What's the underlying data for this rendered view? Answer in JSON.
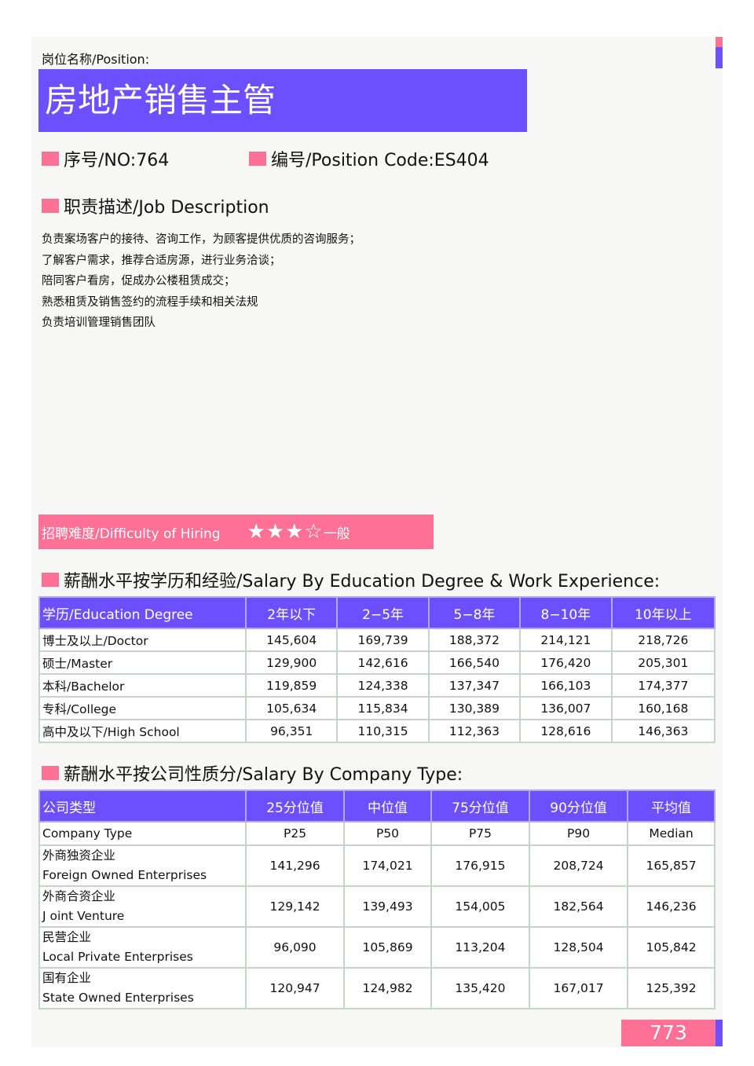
{
  "position_label": "岗位名称/Position:",
  "title": "房地产销售主管",
  "no": "序号/NO:764",
  "code": "编号/Position Code:ES404",
  "job_desc_header": "职责描述/Job Description",
  "job_desc": [
    "负责案场客户的接待、咨询工作，为顾客提供优质的咨询服务；",
    "了解客户需求，推荐合适房源，进行业务洽谈；",
    "陪同客户看房，促成办公楼租赁成交；",
    "熟悉租赁及销售签约的流程手续和相关法规",
    "负责培训管理销售团队"
  ],
  "difficulty": {
    "label": "招聘难度/Difficulty of Hiring",
    "stars": "★★★☆",
    "rating": 3,
    "max": 4,
    "level": "一般"
  },
  "edu_header": "薪酬水平按学历和经验/Salary By Education Degree & Work Experience:",
  "edu_table": {
    "columns": [
      "学历/Education Degree",
      "2年以下",
      "2−5年",
      "5−8年",
      "8−10年",
      "10年以上"
    ],
    "rows": [
      [
        "博士及以上/Doctor",
        "145,604",
        "169,739",
        "188,372",
        "214,121",
        "218,726"
      ],
      [
        "硕士/Master",
        "129,900",
        "142,616",
        "166,540",
        "176,420",
        "205,301"
      ],
      [
        "本科/Bachelor",
        "119,859",
        "124,338",
        "137,347",
        "166,103",
        "174,377"
      ],
      [
        "专科/College",
        "105,634",
        "115,834",
        "130,389",
        "136,007",
        "160,168"
      ],
      [
        "高中及以下/High School",
        "96,351",
        "110,315",
        "112,363",
        "128,616",
        "146,363"
      ]
    ]
  },
  "company_header": "薪酬水平按公司性质分/Salary By Company Type:",
  "company_table": {
    "columns": [
      "公司类型",
      "25分位值",
      "中位值",
      "75分位值",
      "90分位值",
      "平均值"
    ],
    "subheader": [
      "Company Type",
      "P25",
      "P50",
      "P75",
      "P90",
      "Median"
    ],
    "rows": [
      {
        "cn": "外商独资企业",
        "en": "Foreign Owned Enterprises",
        "values": [
          "141,296",
          "174,021",
          "176,915",
          "208,724",
          "165,857"
        ]
      },
      {
        "cn": "外商合资企业",
        "en": "J oint Venture",
        "values": [
          "129,142",
          "139,493",
          "154,005",
          "182,564",
          "146,236"
        ]
      },
      {
        "cn": "民营企业",
        "en": "Local Private Enterprises",
        "values": [
          "96,090",
          "105,869",
          "113,204",
          "128,504",
          "105,842"
        ]
      },
      {
        "cn": "国有企业",
        "en": "State Owned Enterprises",
        "values": [
          "120,947",
          "124,982",
          "135,420",
          "167,017",
          "125,392"
        ]
      }
    ]
  },
  "page_number": "773",
  "colors": {
    "accent_purple": "#6c50ff",
    "accent_pink": "#ff7096"
  }
}
